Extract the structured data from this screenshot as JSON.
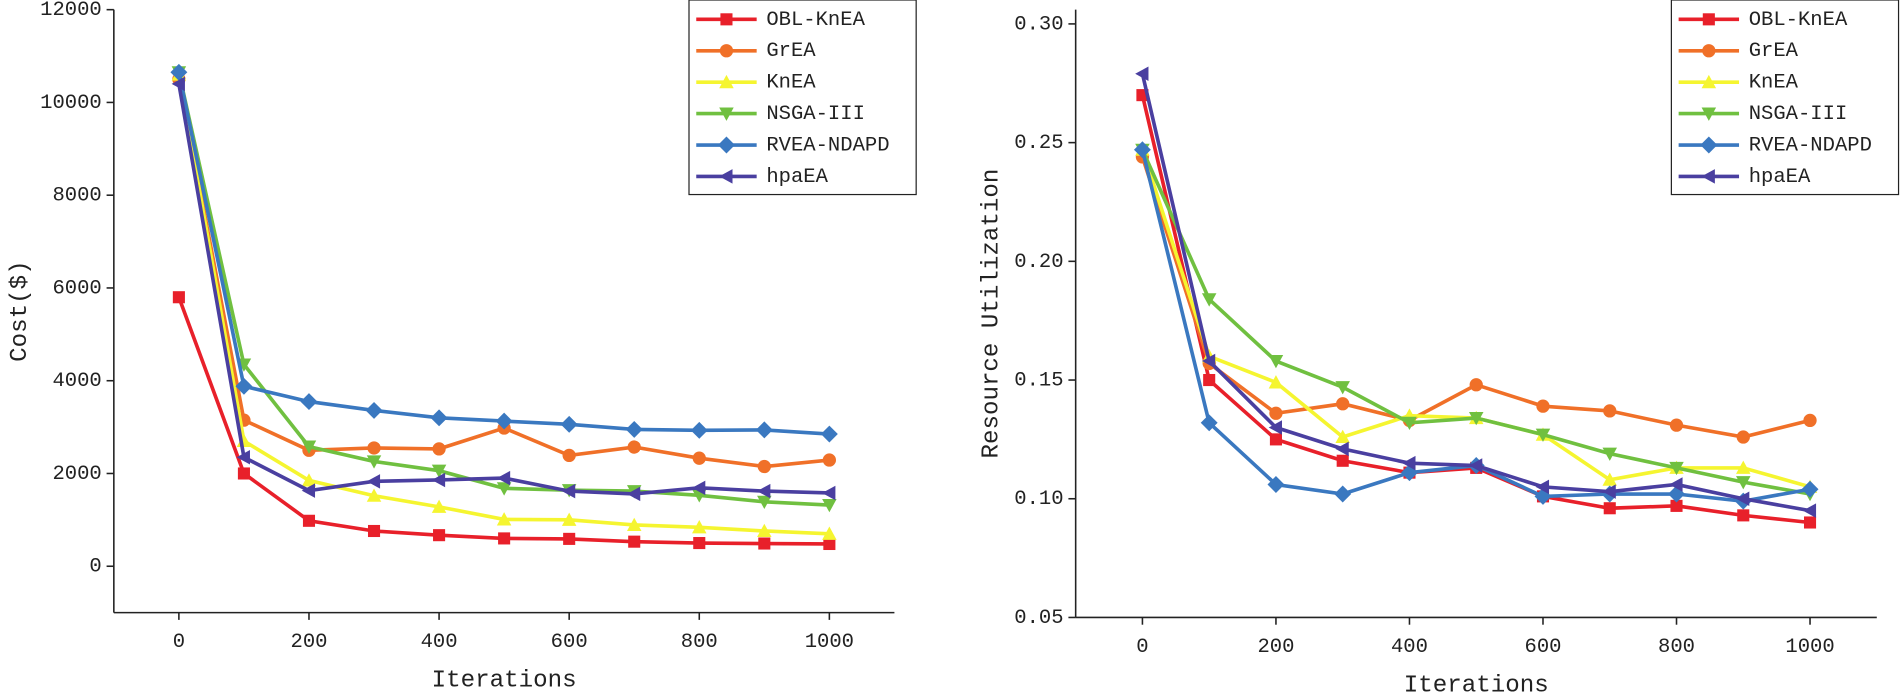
{
  "chart_data": [
    {
      "type": "line",
      "x_label": "Iterations",
      "y_label": "Cost($)",
      "x": [
        0,
        100,
        200,
        300,
        400,
        500,
        600,
        700,
        800,
        900,
        1000
      ],
      "xlim": [
        -100,
        1100
      ],
      "xticks": [
        0,
        200,
        400,
        600,
        800,
        1000
      ],
      "ylim": [
        -1000,
        12000
      ],
      "yticks": [
        0,
        2000,
        4000,
        6000,
        8000,
        10000,
        12000
      ],
      "legend": "upper right",
      "series": [
        {
          "name": "OBL-KnEA",
          "color": "#e8202a",
          "marker": "square",
          "values": [
            5800,
            2000,
            980,
            760,
            670,
            600,
            590,
            530,
            500,
            490,
            480
          ]
        },
        {
          "name": "GrEA",
          "color": "#f07028",
          "marker": "circle",
          "values": [
            10500,
            3150,
            2500,
            2550,
            2530,
            2980,
            2390,
            2570,
            2330,
            2150,
            2290
          ]
        },
        {
          "name": "KnEA",
          "color": "#f5f530",
          "marker": "triangle-up",
          "values": [
            10600,
            2700,
            1850,
            1520,
            1280,
            1010,
            1000,
            890,
            840,
            760,
            700
          ]
        },
        {
          "name": "NSGA-III",
          "color": "#70c040",
          "marker": "triangle-down",
          "values": [
            10650,
            4350,
            2580,
            2260,
            2060,
            1680,
            1640,
            1620,
            1530,
            1390,
            1320
          ]
        },
        {
          "name": "RVEA-NDAPD",
          "color": "#3a78c0",
          "marker": "diamond",
          "values": [
            10650,
            3880,
            3550,
            3360,
            3200,
            3130,
            3060,
            2950,
            2930,
            2940,
            2850
          ]
        },
        {
          "name": "hpaEA",
          "color": "#4a3fa0",
          "marker": "triangle-left",
          "values": [
            10400,
            2350,
            1630,
            1830,
            1860,
            1900,
            1620,
            1560,
            1690,
            1620,
            1580
          ]
        }
      ]
    },
    {
      "type": "line",
      "x_label": "Iterations",
      "y_label": "Resource Utilization",
      "x": [
        0,
        100,
        200,
        300,
        400,
        500,
        600,
        700,
        800,
        900,
        1000
      ],
      "xlim": [
        -100,
        1100
      ],
      "xticks": [
        0,
        200,
        400,
        600,
        800,
        1000
      ],
      "ylim": [
        0.05,
        0.306
      ],
      "yticks": [
        0.05,
        {
          "value": 0.1,
          "label": "0.10"
        },
        0.15,
        {
          "value": 0.2,
          "label": "0.20"
        },
        0.25,
        {
          "value": 0.3,
          "label": "0.30"
        }
      ],
      "legend": "upper right",
      "series": [
        {
          "name": "OBL-KnEA",
          "color": "#e8202a",
          "marker": "square",
          "values": [
            0.27,
            0.15,
            0.125,
            0.116,
            0.111,
            0.113,
            0.101,
            0.096,
            0.097,
            0.093,
            0.09
          ]
        },
        {
          "name": "GrEA",
          "color": "#f07028",
          "marker": "circle",
          "values": [
            0.244,
            0.157,
            0.136,
            0.14,
            0.133,
            0.148,
            0.139,
            0.137,
            0.131,
            0.126,
            0.133
          ]
        },
        {
          "name": "KnEA",
          "color": "#f5f530",
          "marker": "triangle-up",
          "values": [
            0.247,
            0.16,
            0.149,
            0.126,
            0.135,
            0.134,
            0.127,
            0.108,
            0.113,
            0.113,
            0.105
          ]
        },
        {
          "name": "NSGA-III",
          "color": "#70c040",
          "marker": "triangle-down",
          "values": [
            0.247,
            0.184,
            0.158,
            0.147,
            0.132,
            0.134,
            0.127,
            0.119,
            0.113,
            0.107,
            0.102
          ]
        },
        {
          "name": "RVEA-NDAPD",
          "color": "#3a78c0",
          "marker": "diamond",
          "values": [
            0.247,
            0.132,
            0.106,
            0.102,
            0.111,
            0.114,
            0.101,
            0.102,
            0.102,
            0.099,
            0.104
          ]
        },
        {
          "name": "hpaEA",
          "color": "#4a3fa0",
          "marker": "triangle-left",
          "values": [
            0.279,
            0.158,
            0.13,
            0.121,
            0.115,
            0.114,
            0.105,
            0.103,
            0.106,
            0.1,
            0.095
          ]
        }
      ]
    }
  ]
}
